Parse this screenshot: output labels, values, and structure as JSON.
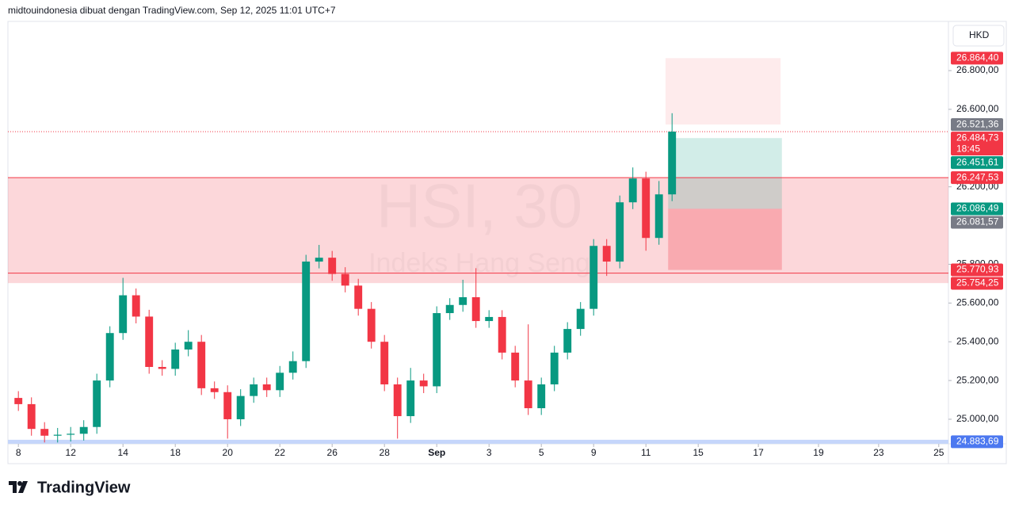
{
  "header": "midtouindonesia dibuat dengan TradingView.com, Sep 12, 2025 11:01 UTC+7",
  "currency": "HKD",
  "brand": "TradingView",
  "chart_data": {
    "type": "candlestick",
    "watermark": "HSI, 30",
    "watermark_subtitle": "Indeks Hang Seng",
    "up_color": "#089981",
    "down_color": "#f23645",
    "x": [
      0,
      0.5,
      1,
      1.5,
      2,
      2.5,
      3,
      3.5,
      4,
      4.5,
      5,
      5.5,
      6,
      6.5,
      7,
      7.5,
      8,
      8.5,
      9,
      9.5,
      10,
      10.5,
      11,
      11.5,
      12,
      12.5,
      13,
      13.5,
      14,
      14.5,
      15,
      15.5,
      16,
      16.5,
      17,
      17.5,
      18,
      18.5,
      19,
      19.5,
      20,
      20.5,
      21,
      21.5,
      22,
      22.5,
      23,
      23.5,
      24,
      24.5,
      25
    ],
    "open": [
      25110,
      25078,
      24950,
      24915,
      24920,
      24925,
      24960,
      25200,
      25445,
      25640,
      25530,
      25270,
      25260,
      25360,
      25400,
      25160,
      25140,
      25000,
      25120,
      25180,
      25150,
      25240,
      25300,
      25814,
      25834,
      25750,
      25690,
      25570,
      25400,
      25180,
      25016,
      25200,
      25170,
      25548,
      25590,
      25630,
      25507,
      25528,
      25344,
      25200,
      25057,
      25180,
      25344,
      25466,
      25570,
      25895,
      25814,
      26120,
      26243,
      25936,
      26161
    ],
    "high": [
      25145,
      25113,
      24985,
      24955,
      24960,
      24995,
      25235,
      25480,
      25730,
      25675,
      25565,
      25305,
      25395,
      25460,
      25435,
      25195,
      25175,
      25155,
      25215,
      25215,
      25275,
      25350,
      25849,
      25900,
      25869,
      25785,
      25725,
      25605,
      25435,
      25215,
      25265,
      25235,
      25583,
      25625,
      25720,
      25780,
      25563,
      25563,
      25379,
      25490,
      25215,
      25379,
      25501,
      25605,
      25930,
      25930,
      26155,
      26300,
      26278,
      26230,
      26580
    ],
    "low": [
      25043,
      24915,
      24880,
      24880,
      24885,
      24890,
      24925,
      25165,
      25410,
      25495,
      25235,
      25225,
      25225,
      25325,
      25125,
      25105,
      24900,
      24965,
      25085,
      25115,
      25115,
      25205,
      25265,
      25779,
      25715,
      25655,
      25535,
      25365,
      25145,
      24900,
      24981,
      25135,
      25135,
      25513,
      25555,
      25472,
      25472,
      25309,
      25165,
      25022,
      25022,
      25145,
      25309,
      25431,
      25535,
      25740,
      25779,
      26085,
      25870,
      25901,
      26126
    ],
    "close": [
      25078,
      24950,
      24915,
      24920,
      24925,
      24960,
      25200,
      25445,
      25640,
      25530,
      25270,
      25260,
      25360,
      25400,
      25160,
      25140,
      25000,
      25120,
      25180,
      25150,
      25240,
      25300,
      25814,
      25834,
      25750,
      25690,
      25570,
      25400,
      25180,
      25016,
      25200,
      25170,
      25548,
      25590,
      25630,
      25507,
      25528,
      25344,
      25200,
      25057,
      25180,
      25344,
      25466,
      25570,
      25895,
      25814,
      26120,
      26243,
      25936,
      26161,
      26484.73
    ],
    "xlim": [
      -0.4,
      35.57
    ],
    "xticks": [
      {
        "value": 0,
        "label": "8"
      },
      {
        "value": 2,
        "label": "12"
      },
      {
        "value": 4,
        "label": "14"
      },
      {
        "value": 6,
        "label": "18"
      },
      {
        "value": 8,
        "label": "20"
      },
      {
        "value": 10,
        "label": "22"
      },
      {
        "value": 12,
        "label": "26"
      },
      {
        "value": 14,
        "label": "28"
      },
      {
        "value": 16,
        "label": "Sep"
      },
      {
        "value": 18,
        "label": "3"
      },
      {
        "value": 20,
        "label": "5"
      },
      {
        "value": 22,
        "label": "9"
      },
      {
        "value": 24,
        "label": "11"
      },
      {
        "value": 26,
        "label": "15"
      },
      {
        "value": 28.3,
        "label": "17"
      },
      {
        "value": 30.6,
        "label": "19"
      },
      {
        "value": 32.9,
        "label": "23"
      },
      {
        "value": 35.2,
        "label": "25"
      }
    ],
    "ylim": [
      24873,
      27054
    ],
    "yticks": [
      {
        "value": 25000,
        "label": "25.000,00"
      },
      {
        "value": 25200,
        "label": "25.200,00"
      },
      {
        "value": 25400,
        "label": "25.400,00"
      },
      {
        "value": 25600,
        "label": "25.600,00"
      },
      {
        "value": 25800,
        "label": "25.800,00"
      },
      {
        "value": 26200,
        "label": "26.200,00"
      },
      {
        "value": 26600,
        "label": "26.600,00"
      },
      {
        "value": 26800,
        "label": "26.800,00"
      }
    ],
    "zones": [
      {
        "top": 26247.53,
        "bottom": 25703,
        "color": "rgba(242,54,69,0.2)"
      }
    ],
    "boxes": [
      {
        "x": [
          24.75,
          29.15
        ],
        "top": 26864.4,
        "bottom": 26521.36,
        "color": "rgba(242,54,69,0.1)"
      },
      {
        "x": [
          24.85,
          29.2
        ],
        "top": 26451.61,
        "bottom": 26086.49,
        "color": "rgba(8,153,129,0.18)"
      },
      {
        "x": [
          24.85,
          29.2
        ],
        "top": 26086.49,
        "bottom": 25770.93,
        "color": "rgba(242,54,69,0.28)"
      }
    ],
    "hlines": [
      {
        "value": 26247.53,
        "color": "#f23645",
        "width": 1
      },
      {
        "value": 25754.25,
        "color": "#f23645",
        "width": 1
      },
      {
        "value": 26484.73,
        "color": "#f23645",
        "width": 1,
        "dash": true
      },
      {
        "value": 24883.69,
        "color": "#c5d6fb",
        "width": 5
      }
    ],
    "price_labels": [
      {
        "value": 26864.4,
        "label": "26.864,40",
        "color": "#f23645"
      },
      {
        "value": 26521.36,
        "label": "26.521,36",
        "color": "#787b86"
      },
      {
        "value": 26484.73,
        "label": "26.484,73",
        "sublabel": "18:45",
        "color": "#f23645"
      },
      {
        "value": 26451.61,
        "label": "26.451,61",
        "color": "#089981"
      },
      {
        "value": 26247.53,
        "label": "26.247,53",
        "color": "#f23645"
      },
      {
        "value": 26086.49,
        "label": "26.086,49",
        "color": "#089981"
      },
      {
        "value": 26081.57,
        "label": "26.081,57",
        "color": "#787b86"
      },
      {
        "value": 25770.93,
        "label": "25.770,93",
        "color": "#f23645"
      },
      {
        "value": 25754.25,
        "label": "25.754,25",
        "color": "#f23645"
      },
      {
        "value": 24883.69,
        "label": "24.883,69",
        "color": "#4c78f0"
      }
    ]
  }
}
